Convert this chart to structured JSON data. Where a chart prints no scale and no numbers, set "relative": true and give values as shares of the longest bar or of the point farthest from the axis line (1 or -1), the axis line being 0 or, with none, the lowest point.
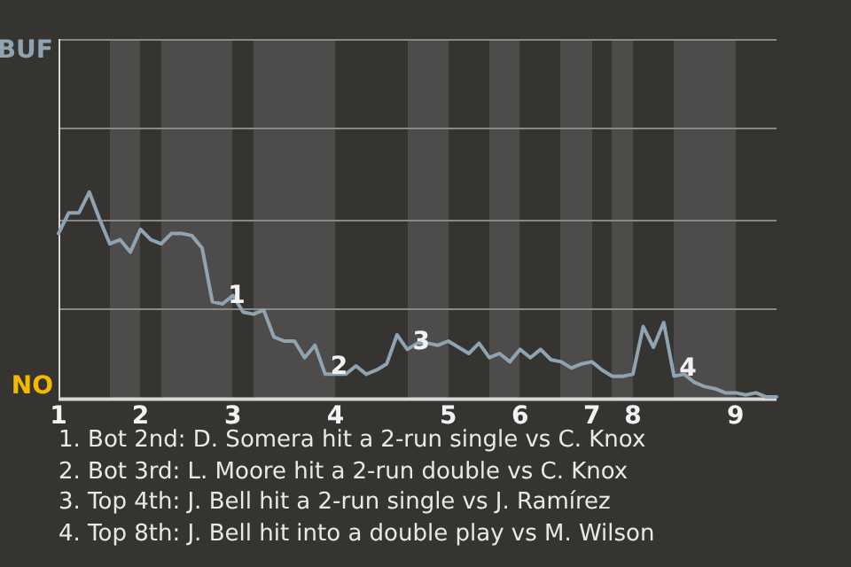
{
  "chart_data": {
    "type": "line",
    "relative": true,
    "categories": [
      "1",
      null,
      null,
      null,
      null,
      null,
      null,
      null,
      "2",
      null,
      null,
      null,
      null,
      null,
      null,
      null,
      null,
      "3",
      null,
      null,
      null,
      null,
      null,
      null,
      null,
      null,
      null,
      "4",
      null,
      null,
      null,
      null,
      null,
      null,
      null,
      null,
      null,
      null,
      "5",
      null,
      null,
      null,
      null,
      null,
      null,
      "6",
      null,
      null,
      null,
      null,
      null,
      null,
      "7",
      null,
      null,
      null,
      "8",
      null,
      null,
      null,
      null,
      null,
      null,
      null,
      null,
      null,
      "9",
      null,
      null,
      null,
      null
    ],
    "values": [
      0.8,
      0.9,
      0.9,
      1,
      0.87,
      0.75,
      0.77,
      0.71,
      0.82,
      0.77,
      0.75,
      0.8,
      0.8,
      0.79,
      0.73,
      0.47,
      0.46,
      0.5,
      0.42,
      0.41,
      0.43,
      0.3,
      0.28,
      0.28,
      0.2,
      0.26,
      0.12,
      0.12,
      0.12,
      0.16,
      0.12,
      0.14,
      0.17,
      0.31,
      0.24,
      0.27,
      0.27,
      0.26,
      0.28,
      0.25,
      0.22,
      0.27,
      0.2,
      0.22,
      0.18,
      0.24,
      0.2,
      0.24,
      0.19,
      0.18,
      0.15,
      0.17,
      0.18,
      0.14,
      0.11,
      0.11,
      0.12,
      0.35,
      0.25,
      0.37,
      0.111,
      0.12,
      0.08,
      0.06,
      0.05,
      0.03,
      0.03,
      0.02,
      0.03,
      0.01,
      0.01
    ],
    "color": "#8fa3b0",
    "colors": [
      "#8fa3b0",
      "#8fa3b0",
      "#8fa3b0",
      "#8fa3b0",
      "#8fa3b0",
      "#f5b800",
      "#f5b800",
      "#f5b800",
      "#8fa3b0",
      "#8fa3b0",
      "#f5b800",
      "#f5b800",
      "#f5b800",
      "#f5b800",
      "#f5b800",
      "#f5b800",
      "#f5b800",
      "#8fa3b0",
      "#8fa3b0",
      "#f5b800",
      "#f5b800",
      "#f5b800",
      "#f5b800",
      "#f5b800",
      "#f5b800",
      "#f5b800",
      "#f5b800",
      "#8fa3b0",
      "#8fa3b0",
      "#8fa3b0",
      "#8fa3b0",
      "#8fa3b0",
      "#8fa3b0",
      "#8fa3b0",
      "#f5b800",
      "#f5b800",
      "#f5b800",
      "#f5b800",
      "#8fa3b0",
      "#8fa3b0",
      "#8fa3b0",
      "#8fa3b0",
      "#f5b800",
      "#f5b800",
      "#f5b800",
      "#8fa3b0",
      "#8fa3b0",
      "#8fa3b0",
      "#8fa3b0",
      "#f5b800",
      "#f5b800",
      "#f5b800",
      "#8fa3b0",
      "#8fa3b0",
      "#f5b800",
      "#f5b800",
      "#8fa3b0",
      "#8fa3b0",
      "#8fa3b0",
      "#8fa3b0",
      "#f5b800",
      "#f5b800",
      "#f5b800",
      "#f5b800",
      "#f5b800",
      "#f5b800",
      "#8fa3b0",
      "#8fa3b0",
      "#8fa3b0",
      "#8fa3b0",
      "#8fa3b0"
    ],
    "ref_lines": [
      {
        "axis": "y",
        "value": 0.44,
        "color": "#8a8886"
      },
      {
        "axis": "y",
        "value": 0.87,
        "color": "#8a8886"
      },
      {
        "axis": "y",
        "value": 1.31,
        "color": "#8a8886"
      },
      {
        "axis": "y",
        "value": 1.74,
        "color": "#8a8886"
      }
    ],
    "marker": "none",
    "annotations": [
      "BUF",
      "NO",
      {
        "text": "1",
        "y": 0.46
      },
      {
        "text": "2",
        "y": 0.12
      },
      {
        "text": "3",
        "y": 0.24
      },
      {
        "text": "4",
        "y": 0.111
      },
      "1. Bot 2nd: D. Somera hit a 2-run single vs C. Knox",
      "2. Bot 3rd: L. Moore hit a 2-run double vs C. Knox",
      "3. Top 4th: J. Bell hit a 2-run single vs J. Ramírez",
      "4. Top 8th: J. Bell hit into a double play vs M. Wilson"
    ]
  }
}
